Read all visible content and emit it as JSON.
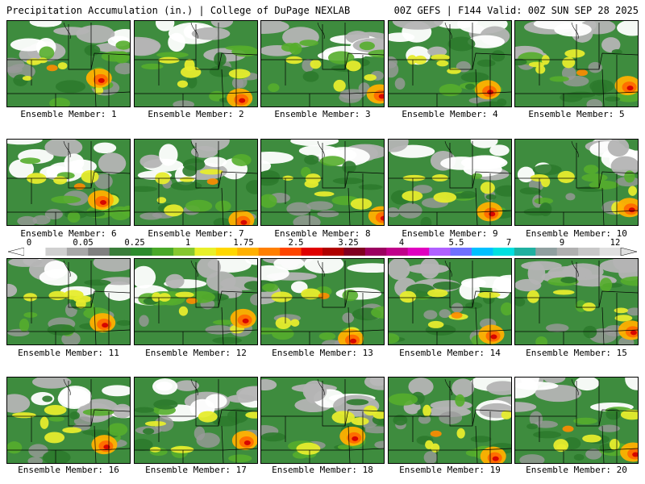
{
  "header": {
    "title_left": "Precipitation Accumulation (in.) | College of DuPage NEXLAB",
    "title_right": "00Z GEFS | F144 Valid: 00Z SUN SEP 28 2025"
  },
  "members": [
    {
      "label": "Ensemble Member: 1"
    },
    {
      "label": "Ensemble Member: 2"
    },
    {
      "label": "Ensemble Member: 3"
    },
    {
      "label": "Ensemble Member: 4"
    },
    {
      "label": "Ensemble Member: 5"
    },
    {
      "label": "Ensemble Member: 6"
    },
    {
      "label": "Ensemble Member: 7"
    },
    {
      "label": "Ensemble Member: 8"
    },
    {
      "label": "Ensemble Member: 9"
    },
    {
      "label": "Ensemble Member: 10"
    },
    {
      "label": "Ensemble Member: 11"
    },
    {
      "label": "Ensemble Member: 12"
    },
    {
      "label": "Ensemble Member: 13"
    },
    {
      "label": "Ensemble Member: 14"
    },
    {
      "label": "Ensemble Member: 15"
    },
    {
      "label": "Ensemble Member: 16"
    },
    {
      "label": "Ensemble Member: 17"
    },
    {
      "label": "Ensemble Member: 18"
    },
    {
      "label": "Ensemble Member: 19"
    },
    {
      "label": "Ensemble Member: 20"
    }
  ],
  "colorbar": {
    "labels": [
      "0",
      "0.05",
      "0.25",
      "1",
      "1.75",
      "2.5",
      "3.25",
      "4",
      "5.5",
      "7",
      "9",
      "12"
    ],
    "colors": [
      "#ffffff",
      "#d0d0d0",
      "#a8a8a8",
      "#808080",
      "#3a7d3a",
      "#2e8b2e",
      "#49a829",
      "#86c730",
      "#e8ef2a",
      "#ffd700",
      "#ffb000",
      "#ff7f00",
      "#ff4500",
      "#e00000",
      "#b00000",
      "#800020",
      "#9b0060",
      "#c0008a",
      "#e000c0",
      "#b060ff",
      "#7070ff",
      "#00c0ff",
      "#00e0e0",
      "#20b0a0",
      "#90a0a0",
      "#b0b0b0",
      "#c8c8c8",
      "#e0e0e0"
    ]
  }
}
